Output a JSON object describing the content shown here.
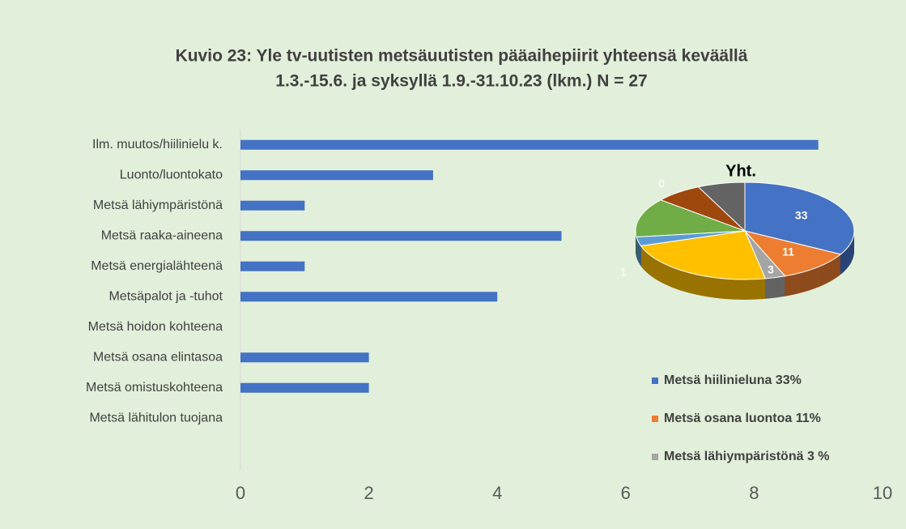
{
  "chart_data": [
    {
      "type": "bar",
      "orientation": "horizontal",
      "title": "Kuvio 23: Yle tv-uutisten metsäuutisten pääaihepiirit yhteensä keväällä",
      "subtitle": "1.3.-15.6. ja syksyllä 1.9.-31.10.23 (lkm.) N = 27",
      "categories": [
        "Ilm. muutos/hiilinielu k.",
        "Luonto/luontokato",
        "Metsä lähiympäristönä",
        "Metsä raaka-aineena",
        "Metsä energialähteenä",
        "Metsäpalot ja -tuhot",
        "Metsä hoidon kohteena",
        "Metsä osana elintasoa",
        "Metsä omistuskohteena",
        "Metsä lähitulon tuojana"
      ],
      "values": [
        9,
        3,
        1,
        5,
        1,
        4,
        0,
        2,
        2,
        0
      ],
      "color": "#4472c4",
      "xlim": [
        0,
        10
      ],
      "xticks": [
        0,
        2,
        4,
        6,
        8,
        10
      ],
      "grid": false
    },
    {
      "type": "pie3d",
      "title": "Yht.",
      "categories": [
        "Metsä hiilinieluna 33%",
        "Metsä osana luontoa 11%",
        "Metsä lähiympäristönä 3 %",
        null,
        null,
        null,
        null,
        null
      ],
      "values": [
        33,
        11,
        3,
        23,
        3,
        13,
        7,
        7
      ],
      "colors": [
        "#4472c4",
        "#ed7d31",
        "#a5a5a5",
        "#ffc000",
        "#5b9bd5",
        "#70ad47",
        "#9e480e",
        "#636363"
      ],
      "value_labels": [
        "33",
        "11",
        "3",
        null,
        null,
        null,
        null,
        null
      ],
      "annotations": [
        "1",
        "0"
      ],
      "legend": "bottom-right"
    }
  ]
}
